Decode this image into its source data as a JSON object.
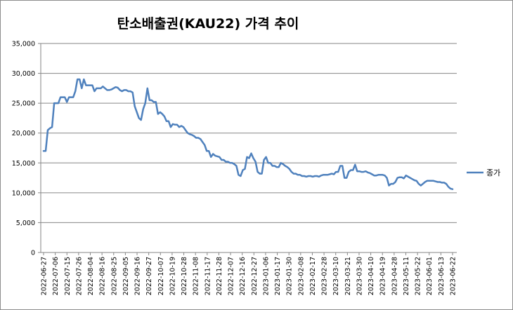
{
  "chart_data": {
    "type": "line",
    "title": "탄소배출권(KAU22) 가격 추이",
    "xlabel": "",
    "ylabel": "",
    "ylim": [
      0,
      35000
    ],
    "y_ticks": [
      "0",
      "5,000",
      "10,000",
      "15,000",
      "20,000",
      "25,000",
      "30,000",
      "35,000"
    ],
    "x_tick_labels": [
      "2022-06-27",
      "2022-07-06",
      "2022-07-15",
      "2022-07-26",
      "2022-08-04",
      "2022-08-16",
      "2022-08-25",
      "2022-09-05",
      "2022-09-16",
      "2022-09-27",
      "2022-10-07",
      "2022-10-19",
      "2022-10-28",
      "2022-11-08",
      "2022-11-17",
      "2022-11-28",
      "2022-12-07",
      "2022-12-16",
      "2022-12-27",
      "2023-01-06",
      "2023-01-17",
      "2023-01-30",
      "2023-02-08",
      "2023-02-17",
      "2023-02-28",
      "2023-03-10",
      "2023-03-21",
      "2023-03-30",
      "2023-04-10",
      "2023-04-19",
      "2023-04-28",
      "2023-05-11",
      "2023-05-22",
      "2023-06-01",
      "2023-06-13",
      "2023-06-22"
    ],
    "grid": "horizontal",
    "legend": "right",
    "series": [
      {
        "name": "종가",
        "color": "#4f81bd",
        "values": [
          17000,
          17000,
          20500,
          20800,
          21000,
          25000,
          25000,
          25000,
          26000,
          26000,
          26000,
          25200,
          26000,
          26000,
          26000,
          27000,
          29000,
          29000,
          27500,
          29000,
          28000,
          28000,
          28000,
          28000,
          27000,
          27500,
          27500,
          27500,
          27800,
          27500,
          27200,
          27200,
          27300,
          27500,
          27700,
          27600,
          27200,
          27000,
          27200,
          27200,
          27000,
          27000,
          26800,
          24500,
          23500,
          22500,
          22200,
          24000,
          25000,
          27500,
          25500,
          25500,
          25200,
          25200,
          23200,
          23500,
          23200,
          22800,
          22000,
          22000,
          21000,
          21500,
          21400,
          21400,
          21000,
          21200,
          21000,
          20500,
          20000,
          19800,
          19700,
          19500,
          19200,
          19200,
          19000,
          18500,
          18000,
          17000,
          17000,
          16000,
          16500,
          16200,
          16100,
          16000,
          15500,
          15500,
          15200,
          15200,
          15000,
          15000,
          14800,
          14500,
          13000,
          12800,
          13800,
          14000,
          16000,
          15800,
          16600,
          15800,
          15200,
          13500,
          13200,
          13200,
          15500,
          16000,
          15000,
          15000,
          14500,
          14500,
          14300,
          14300,
          15000,
          14800,
          14500,
          14300,
          14000,
          13500,
          13200,
          13200,
          13000,
          13000,
          12800,
          12800,
          12700,
          12800,
          12800,
          12700,
          12800,
          12800,
          12700,
          12900,
          13000,
          13000,
          13000,
          13100,
          13200,
          13100,
          13500,
          13500,
          14500,
          14500,
          12500,
          12500,
          13500,
          13800,
          13800,
          14700,
          13600,
          13600,
          13500,
          13500,
          13600,
          13400,
          13300,
          13100,
          12900,
          12900,
          13000,
          13000,
          13000,
          12900,
          12500,
          11200,
          11500,
          11500,
          11800,
          12500,
          12600,
          12600,
          12400,
          12900,
          12700,
          12500,
          12300,
          12100,
          12000,
          11500,
          11200,
          11500,
          11800,
          12000,
          12000,
          12000,
          12000,
          11900,
          11800,
          11800,
          11700,
          11700,
          11500,
          11000,
          10700,
          10600
        ]
      }
    ]
  }
}
